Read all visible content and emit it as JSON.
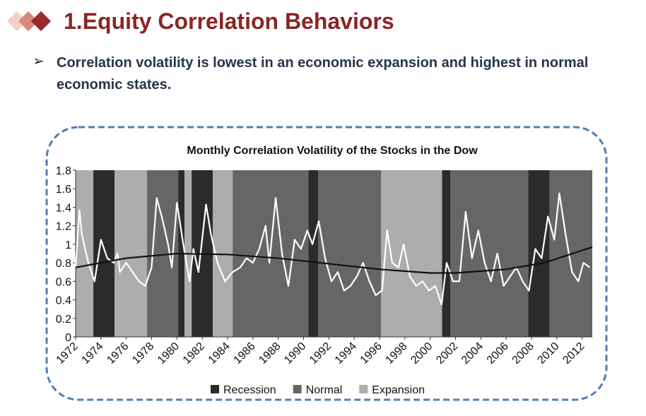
{
  "header": {
    "title": "1.Equity Correlation Behaviors"
  },
  "bullet": "Correlation volatility is lowest in an economic expansion and highest in normal economic states.",
  "chart_data": {
    "type": "line",
    "title": "Monthly Correlation Volatility of the Stocks in the Dow",
    "xlim": [
      1972,
      2012.8
    ],
    "ylim": [
      0,
      1.8
    ],
    "xticks": [
      1972,
      1974,
      1976,
      1978,
      1980,
      1982,
      1984,
      1986,
      1988,
      1990,
      1992,
      1994,
      1996,
      1998,
      2000,
      2002,
      2004,
      2006,
      2008,
      2010,
      2012
    ],
    "yticks": [
      0,
      0.2,
      0.4,
      0.6,
      0.8,
      1,
      1.2,
      1.4,
      1.6,
      1.8
    ],
    "legend": [
      {
        "name": "Recession",
        "color": "#2b2b2b"
      },
      {
        "name": "Normal",
        "color": "#666666"
      },
      {
        "name": "Expansion",
        "color": "#adadad"
      }
    ],
    "bands": [
      {
        "start": 1972,
        "end": 1973.4,
        "regime": "Expansion"
      },
      {
        "start": 1973.4,
        "end": 1975.07,
        "regime": "Recession"
      },
      {
        "start": 1975.07,
        "end": 1977.64,
        "regime": "Expansion"
      },
      {
        "start": 1977.64,
        "end": 1980.1,
        "regime": "Normal"
      },
      {
        "start": 1980.1,
        "end": 1980.6,
        "regime": "Recession"
      },
      {
        "start": 1980.6,
        "end": 1981.16,
        "regime": "Expansion"
      },
      {
        "start": 1981.16,
        "end": 1982.84,
        "regime": "Recession"
      },
      {
        "start": 1982.84,
        "end": 1984.4,
        "regime": "Expansion"
      },
      {
        "start": 1984.4,
        "end": 1990.38,
        "regime": "Normal"
      },
      {
        "start": 1990.38,
        "end": 1991.16,
        "regime": "Recession"
      },
      {
        "start": 1991.16,
        "end": 1996.13,
        "regime": "Normal"
      },
      {
        "start": 1996.13,
        "end": 2000.94,
        "regime": "Expansion"
      },
      {
        "start": 2000.94,
        "end": 2001.6,
        "regime": "Recession"
      },
      {
        "start": 2001.6,
        "end": 2007.75,
        "regime": "Normal"
      },
      {
        "start": 2007.75,
        "end": 2009.43,
        "regime": "Recession"
      },
      {
        "start": 2009.43,
        "end": 2012.8,
        "regime": "Normal"
      }
    ],
    "series": [
      {
        "color": "#ffffff",
        "x": [
          1972.0,
          1972.3,
          1972.5,
          1973.0,
          1973.5,
          1974.0,
          1974.5,
          1975.0,
          1975.3,
          1975.5,
          1976.0,
          1976.5,
          1977.0,
          1977.5,
          1978.0,
          1978.4,
          1978.8,
          1979.3,
          1979.6,
          1980.0,
          1980.5,
          1981.0,
          1981.3,
          1981.7,
          1982.3,
          1982.7,
          1983.2,
          1983.8,
          1984.4,
          1985.0,
          1985.5,
          1986.0,
          1986.5,
          1987.0,
          1987.3,
          1987.8,
          1988.3,
          1988.8,
          1989.3,
          1989.8,
          1990.3,
          1990.7,
          1991.2,
          1991.7,
          1992.2,
          1992.7,
          1993.2,
          1993.7,
          1994.2,
          1994.7,
          1995.2,
          1995.7,
          1996.2,
          1996.6,
          1997.0,
          1997.5,
          1997.9,
          1998.4,
          1998.9,
          1999.4,
          1999.9,
          2000.4,
          2000.9,
          2001.3,
          2001.8,
          2002.3,
          2002.8,
          2003.3,
          2003.8,
          2004.3,
          2004.8,
          2005.3,
          2005.8,
          2006.3,
          2006.8,
          2007.3,
          2007.8,
          2008.3,
          2008.8,
          2009.3,
          2009.8,
          2010.2,
          2010.7,
          2011.2,
          2011.7,
          2012.1,
          2012.6
        ],
        "values": [
          0.75,
          1.37,
          1.1,
          0.8,
          0.6,
          1.05,
          0.85,
          0.8,
          0.9,
          0.7,
          0.8,
          0.7,
          0.6,
          0.55,
          0.75,
          1.5,
          1.3,
          1.0,
          0.75,
          1.45,
          1.0,
          0.6,
          0.95,
          0.7,
          1.43,
          1.1,
          0.8,
          0.6,
          0.7,
          0.75,
          0.85,
          0.8,
          0.95,
          1.2,
          0.8,
          1.5,
          0.9,
          0.55,
          1.05,
          0.95,
          1.15,
          1.0,
          1.25,
          0.85,
          0.6,
          0.7,
          0.5,
          0.55,
          0.65,
          0.8,
          0.6,
          0.45,
          0.5,
          1.15,
          0.8,
          0.75,
          1.0,
          0.65,
          0.55,
          0.6,
          0.5,
          0.55,
          0.35,
          0.8,
          0.6,
          0.6,
          1.35,
          0.85,
          1.15,
          0.8,
          0.6,
          0.9,
          0.55,
          0.65,
          0.75,
          0.6,
          0.5,
          0.95,
          0.85,
          1.3,
          1.05,
          1.55,
          1.1,
          0.7,
          0.6,
          0.8,
          0.75
        ]
      },
      {
        "color": "#111111",
        "x": [
          1972,
          1976,
          1980,
          1984,
          1988,
          1992,
          1996,
          2000,
          2002,
          2006,
          2009,
          2012.8
        ],
        "values": [
          0.75,
          0.85,
          0.9,
          0.89,
          0.85,
          0.79,
          0.73,
          0.69,
          0.69,
          0.73,
          0.8,
          0.97
        ]
      }
    ]
  }
}
